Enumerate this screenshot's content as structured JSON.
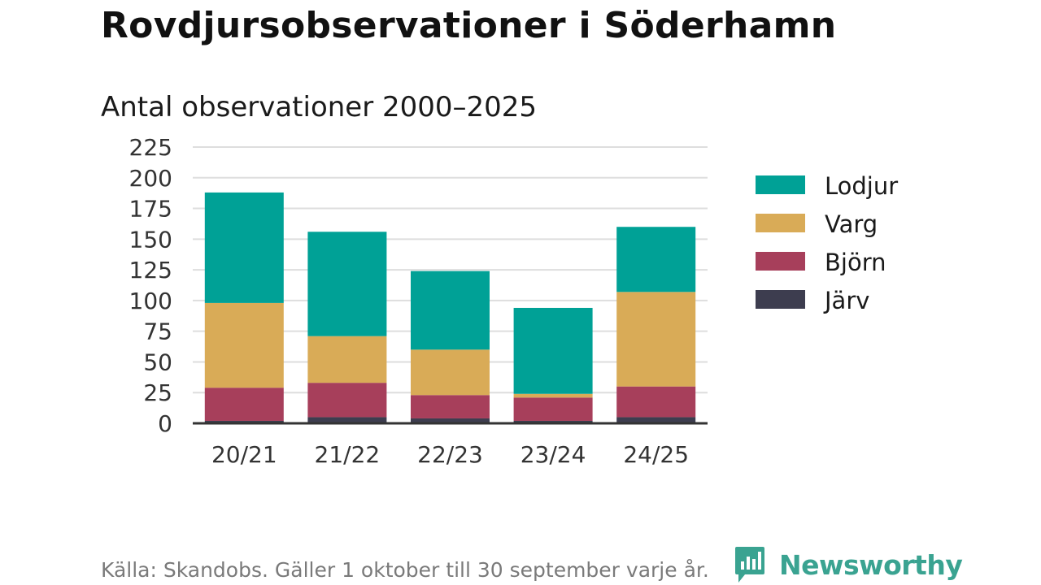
{
  "title": "Rovdjursobservationer i Söderhamn",
  "subtitle": "Antal observationer 2000–2025",
  "footer": "Källa: Skandobs. Gäller 1 oktober till 30 september varje år.",
  "brand": {
    "name": "Newsworthy",
    "icon": "newsworthy-logo-icon",
    "color": "#3aa391"
  },
  "chart_data": {
    "type": "bar",
    "stacked": true,
    "title": "Antal observationer 2000–2025",
    "xlabel": "",
    "ylabel": "",
    "categories": [
      "20/21",
      "21/22",
      "22/23",
      "23/24",
      "24/25"
    ],
    "series": [
      {
        "name": "Järv",
        "color": "#3d3d4f",
        "values": [
          2,
          5,
          4,
          2,
          5
        ]
      },
      {
        "name": "Björn",
        "color": "#a73f5b",
        "values": [
          27,
          28,
          19,
          19,
          25
        ]
      },
      {
        "name": "Varg",
        "color": "#d9ab57",
        "values": [
          69,
          38,
          37,
          3,
          77
        ]
      },
      {
        "name": "Lodjur",
        "color": "#00a196",
        "values": [
          90,
          85,
          64,
          70,
          53
        ]
      }
    ],
    "legend_order": [
      "Lodjur",
      "Varg",
      "Björn",
      "Järv"
    ],
    "ylim": [
      0,
      225
    ],
    "yticks": [
      0,
      25,
      50,
      75,
      100,
      125,
      150,
      175,
      200,
      225
    ],
    "grid": true,
    "legend_position": "right"
  }
}
